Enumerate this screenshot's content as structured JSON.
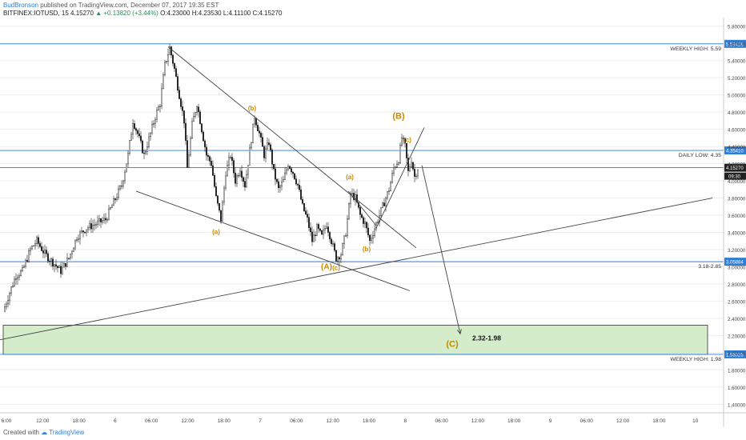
{
  "header": {
    "author": "BudBronson",
    "published_text": "published on TradingView.com, December 07, 2017 19:35 EST",
    "symbol": "BITFINEX:IOTUSD, 15",
    "last": "4.15270",
    "change": "+0.13820 (+3.44%)",
    "open": "O:4.23000",
    "high": "H:4.23530",
    "low": "L:4.11100",
    "close": "C:4.15270"
  },
  "footer": {
    "created_with": "Created with",
    "brand": "TradingView"
  },
  "colors": {
    "level_line": "#2f7ed8",
    "price_line": "#555555",
    "candle": "#222222",
    "wave_label": "#c88a00",
    "zone_fill": "#d4ecc9",
    "zone_stroke": "#333333",
    "trendline": "#444444",
    "grid": "#eeeeee"
  },
  "chart_data": {
    "type": "candlestick",
    "title": "",
    "ylim": [
      1.3,
      5.9
    ],
    "y_ticks": [
      "1.40000",
      "1.60000",
      "1.80000",
      "2.00000",
      "2.20000",
      "2.40000",
      "2.60000",
      "2.80000",
      "3.00000",
      "3.20000",
      "3.40000",
      "3.60000",
      "3.80000",
      "4.00000",
      "4.20000",
      "4.40000",
      "4.60000",
      "4.80000",
      "5.00000",
      "5.20000",
      "5.40000",
      "5.60000",
      "5.80000"
    ],
    "x_tick_labels": [
      "6:00",
      "12:00",
      "18:00",
      "6",
      "06:00",
      "12:00",
      "18:00",
      "7",
      "06:00",
      "12:00",
      "18:00",
      "8",
      "06:00",
      "12:00",
      "18:00",
      "9",
      "06:00",
      "12:00",
      "18:00",
      "10"
    ],
    "path_points": [
      [
        0,
        2.48
      ],
      [
        8,
        2.7
      ],
      [
        16,
        2.9
      ],
      [
        24,
        2.95
      ],
      [
        34,
        3.2
      ],
      [
        42,
        3.3
      ],
      [
        52,
        3.15
      ],
      [
        62,
        3.05
      ],
      [
        72,
        2.95
      ],
      [
        82,
        3.1
      ],
      [
        92,
        3.35
      ],
      [
        104,
        3.45
      ],
      [
        116,
        3.5
      ],
      [
        128,
        3.55
      ],
      [
        138,
        3.75
      ],
      [
        148,
        3.95
      ],
      [
        156,
        4.3
      ],
      [
        162,
        4.7
      ],
      [
        168,
        4.55
      ],
      [
        176,
        4.3
      ],
      [
        184,
        4.55
      ],
      [
        190,
        4.75
      ],
      [
        196,
        4.9
      ],
      [
        202,
        5.35
      ],
      [
        208,
        5.55
      ],
      [
        214,
        5.3
      ],
      [
        220,
        5.0
      ],
      [
        226,
        4.7
      ],
      [
        230,
        4.15
      ],
      [
        236,
        4.65
      ],
      [
        242,
        4.9
      ],
      [
        248,
        4.6
      ],
      [
        254,
        4.3
      ],
      [
        260,
        4.2
      ],
      [
        266,
        3.8
      ],
      [
        272,
        3.55
      ],
      [
        278,
        4.1
      ],
      [
        284,
        4.3
      ],
      [
        290,
        4.0
      ],
      [
        296,
        4.15
      ],
      [
        302,
        3.95
      ],
      [
        308,
        4.35
      ],
      [
        314,
        4.75
      ],
      [
        320,
        4.55
      ],
      [
        326,
        4.3
      ],
      [
        332,
        4.45
      ],
      [
        338,
        4.1
      ],
      [
        344,
        3.9
      ],
      [
        350,
        4.0
      ],
      [
        356,
        4.2
      ],
      [
        362,
        4.1
      ],
      [
        368,
        3.95
      ],
      [
        374,
        3.7
      ],
      [
        380,
        3.55
      ],
      [
        386,
        3.3
      ],
      [
        392,
        3.45
      ],
      [
        398,
        3.35
      ],
      [
        404,
        3.5
      ],
      [
        410,
        3.3
      ],
      [
        416,
        3.1
      ],
      [
        422,
        3.15
      ],
      [
        428,
        3.4
      ],
      [
        434,
        3.85
      ],
      [
        440,
        3.8
      ],
      [
        446,
        3.6
      ],
      [
        452,
        3.5
      ],
      [
        458,
        3.3
      ],
      [
        464,
        3.45
      ],
      [
        470,
        3.6
      ],
      [
        476,
        3.75
      ],
      [
        482,
        3.9
      ],
      [
        488,
        4.15
      ],
      [
        494,
        4.25
      ],
      [
        498,
        4.5
      ],
      [
        502,
        4.4
      ],
      [
        506,
        4.1
      ],
      [
        510,
        4.25
      ],
      [
        514,
        4.05
      ],
      [
        518,
        4.15
      ]
    ],
    "levels": [
      {
        "label": "WEEKLY HIGH: 5.59",
        "value": 5.59428,
        "price_tag": "5.59428"
      },
      {
        "label": "DAILY LOW: 4.35",
        "value": 4.3541,
        "price_tag": "4.35410"
      },
      {
        "label": "3.18-2.85",
        "value": 3.05884,
        "price_tag": "3.05884"
      },
      {
        "label": "WEEKLY HIGH: 1.98",
        "value": 1.98028,
        "price_tag": "1.98028"
      }
    ],
    "current_price": {
      "value": 4.1527,
      "tag": "4.15270",
      "countdown": "09:30"
    },
    "target_zone": {
      "from": 1.98,
      "to": 2.32,
      "label": "2.32-1.98"
    },
    "wave_labels": [
      "(b)",
      "(a)",
      "(A)",
      "(c)",
      "(a)",
      "(b)",
      "(B)",
      "(c)",
      "(C)"
    ],
    "trendlines": [
      {
        "from": [
          210,
          5.56
        ],
        "to": [
          520,
          3.22
        ]
      },
      {
        "from": [
          170,
          3.88
        ],
        "to": [
          512,
          2.72
        ]
      },
      {
        "from": [
          0,
          2.15
        ],
        "to": [
          890,
          3.8
        ]
      },
      {
        "from": [
          470,
          3.45
        ],
        "to": [
          530,
          4.62
        ]
      },
      {
        "from": [
          435,
          3.88
        ],
        "to": [
          470,
          3.48
        ]
      }
    ],
    "projection": {
      "from": [
        527,
        4.18
      ],
      "to": [
        575,
        2.22
      ]
    }
  }
}
